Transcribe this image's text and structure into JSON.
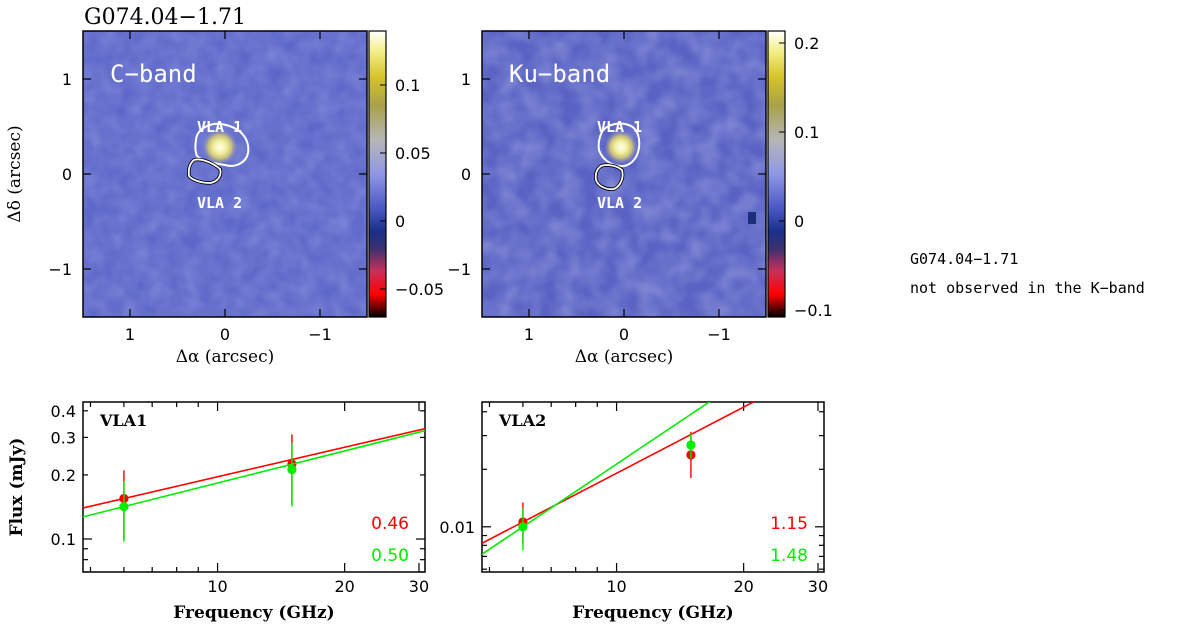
{
  "title": "G074.04−1.71",
  "note": {
    "line1": "G074.04−1.71",
    "line2": "not observed in the K−band"
  },
  "maps": [
    {
      "name": "C-band",
      "label": "C−band",
      "xlabel": "Δα (arcsec)",
      "ylabel": "Δδ (arcsec)",
      "xticks": [
        "1",
        "0",
        "−1"
      ],
      "yticks": [
        "1",
        "0",
        "−1"
      ],
      "colorbar_ticks": [
        "0.1",
        "0.05",
        "0",
        "−0.05"
      ],
      "colorbar_range": [
        -0.07,
        0.13
      ],
      "sources": [
        "VLA 1",
        "VLA 2"
      ]
    },
    {
      "name": "Ku-band",
      "label": "Ku−band",
      "xlabel": "Δα (arcsec)",
      "ylabel": "",
      "xticks": [
        "1",
        "0",
        "−1"
      ],
      "yticks": [
        "1",
        "0",
        "−1"
      ],
      "colorbar_ticks": [
        "0.2",
        "0.1",
        "0",
        "−0.1"
      ],
      "colorbar_range": [
        -0.12,
        0.22
      ],
      "sources": [
        "VLA 1",
        "VLA 2"
      ]
    }
  ],
  "chart_data": [
    {
      "type": "scatter",
      "title": "VLA1",
      "xlabel": "Frequency (GHz)",
      "ylabel": "Flux (mJy)",
      "xscale": "log",
      "yscale": "log",
      "xlim": [
        4.8,
        31
      ],
      "ylim": [
        0.07,
        0.44
      ],
      "xtick_labels": [
        "10",
        "20",
        "30"
      ],
      "ytick_labels": [
        "0.4",
        "0.3",
        "0.2",
        "0.1"
      ],
      "series": [
        {
          "name": "red",
          "color": "#ff0000",
          "x": [
            6,
            15
          ],
          "y": [
            0.155,
            0.225
          ],
          "yerr_low": [
            0.055,
            0.08
          ],
          "yerr_high": [
            0.055,
            0.085
          ],
          "index_label": "0.46",
          "fit_index": 0.46,
          "fit_ref": [
            6,
            0.155
          ]
        },
        {
          "name": "green",
          "color": "#00ee00",
          "x": [
            6,
            15
          ],
          "y": [
            0.142,
            0.212
          ],
          "yerr_low": [
            0.045,
            0.07
          ],
          "yerr_high": [
            0.045,
            0.07
          ],
          "index_label": "0.50",
          "fit_index": 0.5,
          "fit_ref": [
            6,
            0.142
          ]
        }
      ]
    },
    {
      "type": "scatter",
      "title": "VLA2",
      "xlabel": "Frequency (GHz)",
      "ylabel": "",
      "xscale": "log",
      "yscale": "log",
      "xlim": [
        4.8,
        31
      ],
      "ylim": [
        0.0058,
        0.045
      ],
      "xtick_labels": [
        "10",
        "20",
        "30"
      ],
      "ytick_labels": [
        "0.01"
      ],
      "series": [
        {
          "name": "red",
          "color": "#ff0000",
          "x": [
            6,
            15
          ],
          "y": [
            0.0106,
            0.0238
          ],
          "yerr_low": [
            0.0024,
            0.0058
          ],
          "yerr_high": [
            0.0028,
            0.0076
          ],
          "index_label": "1.15",
          "fit_index": 1.15,
          "fit_ref": [
            6,
            0.0106
          ]
        },
        {
          "name": "green",
          "color": "#00ee00",
          "x": [
            6,
            15
          ],
          "y": [
            0.01,
            0.0268
          ],
          "yerr_low": [
            0.0025,
            0.004
          ],
          "yerr_high": [
            0.0025,
            0.004
          ],
          "index_label": "1.48",
          "fit_index": 1.48,
          "fit_ref": [
            6,
            0.01
          ]
        }
      ]
    }
  ]
}
